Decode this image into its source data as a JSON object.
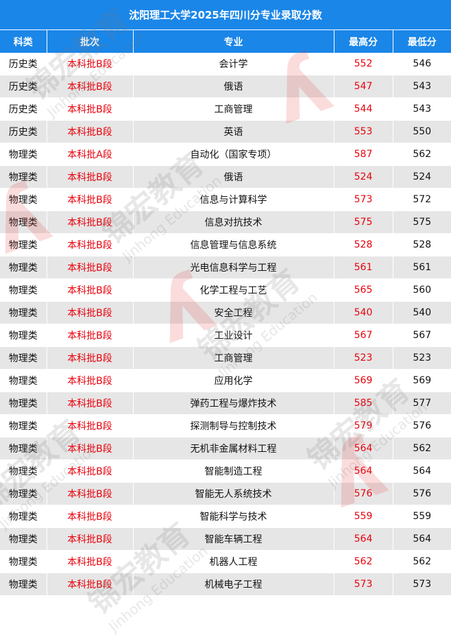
{
  "title": "沈阳理工大学2025年四川分专业录取分数",
  "headers": [
    "科类",
    "批次",
    "专业",
    "最高分",
    "最低分"
  ],
  "rows": [
    [
      "历史类",
      "本科批B段",
      "会计学",
      "552",
      "546"
    ],
    [
      "历史类",
      "本科批B段",
      "俄语",
      "547",
      "543"
    ],
    [
      "历史类",
      "本科批B段",
      "工商管理",
      "544",
      "543"
    ],
    [
      "历史类",
      "本科批B段",
      "英语",
      "553",
      "550"
    ],
    [
      "物理类",
      "本科批A段",
      "自动化（国家专项）",
      "587",
      "562"
    ],
    [
      "物理类",
      "本科批B段",
      "俄语",
      "524",
      "524"
    ],
    [
      "物理类",
      "本科批B段",
      "信息与计算科学",
      "573",
      "572"
    ],
    [
      "物理类",
      "本科批B段",
      "信息对抗技术",
      "575",
      "575"
    ],
    [
      "物理类",
      "本科批B段",
      "信息管理与信息系统",
      "528",
      "528"
    ],
    [
      "物理类",
      "本科批B段",
      "光电信息科学与工程",
      "561",
      "561"
    ],
    [
      "物理类",
      "本科批B段",
      "化学工程与工艺",
      "565",
      "560"
    ],
    [
      "物理类",
      "本科批B段",
      "安全工程",
      "540",
      "540"
    ],
    [
      "物理类",
      "本科批B段",
      "工业设计",
      "567",
      "567"
    ],
    [
      "物理类",
      "本科批B段",
      "工商管理",
      "523",
      "523"
    ],
    [
      "物理类",
      "本科批B段",
      "应用化学",
      "569",
      "569"
    ],
    [
      "物理类",
      "本科批B段",
      "弹药工程与爆炸技术",
      "585",
      "577"
    ],
    [
      "物理类",
      "本科批B段",
      "探测制导与控制技术",
      "579",
      "576"
    ],
    [
      "物理类",
      "本科批B段",
      "无机非金属材料工程",
      "564",
      "562"
    ],
    [
      "物理类",
      "本科批B段",
      "智能制造工程",
      "564",
      "564"
    ],
    [
      "物理类",
      "本科批B段",
      "智能无人系统技术",
      "576",
      "576"
    ],
    [
      "物理类",
      "本科批B段",
      "智能科学与技术",
      "559",
      "559"
    ],
    [
      "物理类",
      "本科批B段",
      "智能车辆工程",
      "564",
      "564"
    ],
    [
      "物理类",
      "本科批B段",
      "机器人工程",
      "562",
      "562"
    ],
    [
      "物理类",
      "本科批B段",
      "机械电子工程",
      "573",
      "573"
    ]
  ],
  "watermark": {
    "cn": "锦宏教育",
    "en": "Jinhong Education"
  },
  "colors": {
    "header_bg": "#1a86e8",
    "highlight": "#e8000b",
    "alt_row": "#e6e6e6"
  }
}
